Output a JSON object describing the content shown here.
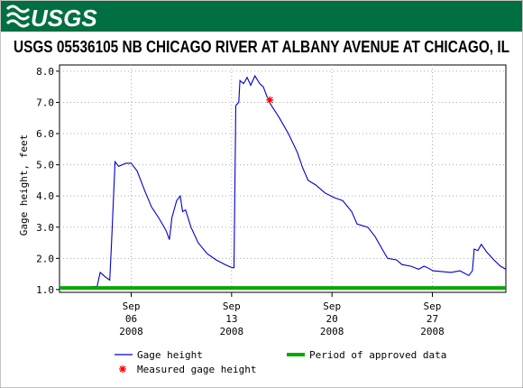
{
  "logo": "USGS",
  "chart_data": {
    "type": "line",
    "title": "USGS 05536105 NB CHICAGO RIVER AT ALBANY AVENUE AT CHICAGO, IL",
    "y_label": "Gage height, feet",
    "xlim": [
      "2008-09-01T00:00",
      "2008-10-02T03:00"
    ],
    "ylim": [
      0.91,
      8.2
    ],
    "grid": true,
    "yticks": [
      {
        "value": 1,
        "label": "1.0"
      },
      {
        "value": 2,
        "label": "2.0"
      },
      {
        "value": 3,
        "label": "3.0"
      },
      {
        "value": 4,
        "label": "4.0"
      },
      {
        "value": 5,
        "label": "5.0"
      },
      {
        "value": 6,
        "label": "6.0"
      },
      {
        "value": 7,
        "label": "7.0"
      },
      {
        "value": 8,
        "label": "8.0"
      }
    ],
    "xticks": [
      {
        "value": "2008-09-06T00:00",
        "label": [
          "Sep",
          "06",
          "2008"
        ]
      },
      {
        "value": "2008-09-13T00:00",
        "label": [
          "Sep",
          "13",
          "2008"
        ]
      },
      {
        "value": "2008-09-20T00:00",
        "label": [
          "Sep",
          "20",
          "2008"
        ]
      },
      {
        "value": "2008-09-27T00:00",
        "label": [
          "Sep",
          "27",
          "2008"
        ]
      }
    ],
    "series": [
      {
        "name": "Gage height",
        "color": "#0000cc",
        "style": "line",
        "x": [
          "2008-09-01T00:00",
          "2008-09-03T03:00",
          "2008-09-03T15:00",
          "2008-09-03T20:00",
          "2008-09-04T05:00",
          "2008-09-04T12:00",
          "2008-09-04T15:00",
          "2008-09-04T21:00",
          "2008-09-05T03:00",
          "2008-09-05T15:00",
          "2008-09-06T00:00",
          "2008-09-06T10:00",
          "2008-09-06T22:00",
          "2008-09-07T10:00",
          "2008-09-07T22:00",
          "2008-09-08T10:00",
          "2008-09-08T16:00",
          "2008-09-08T20:00",
          "2008-09-09T04:00",
          "2008-09-09T10:00",
          "2008-09-09T14:00",
          "2008-09-09T19:00",
          "2008-09-10T04:00",
          "2008-09-10T16:00",
          "2008-09-11T07:00",
          "2008-09-11T22:00",
          "2008-09-12T13:00",
          "2008-09-13T01:00",
          "2008-09-13T04:00",
          "2008-09-13T07:00",
          "2008-09-13T12:00",
          "2008-09-13T14:00",
          "2008-09-13T20:00",
          "2008-09-14T02:00",
          "2008-09-14T08:00",
          "2008-09-14T15:00",
          "2008-09-14T23:00",
          "2008-09-15T05:00",
          "2008-09-15T11:00",
          "2008-09-15T17:00",
          "2008-09-16T08:00",
          "2008-09-16T23:00",
          "2008-09-17T14:00",
          "2008-09-17T23:00",
          "2008-09-18T08:00",
          "2008-09-18T21:00",
          "2008-09-19T12:00",
          "2008-09-20T03:00",
          "2008-09-20T18:00",
          "2008-09-21T09:00",
          "2008-09-21T18:00",
          "2008-09-22T12:00",
          "2008-09-23T00:00",
          "2008-09-23T12:00",
          "2008-09-23T21:00",
          "2008-09-24T12:00",
          "2008-09-24T21:00",
          "2008-09-25T12:00",
          "2008-09-26T01:00",
          "2008-09-26T10:00",
          "2008-09-26T16:00",
          "2008-09-27T01:00",
          "2008-09-28T07:00",
          "2008-09-28T22:00",
          "2008-09-29T13:00",
          "2008-09-29T19:00",
          "2008-09-29T22:00",
          "2008-09-30T04:00",
          "2008-09-30T10:00",
          "2008-09-30T19:00",
          "2008-10-01T07:00",
          "2008-10-01T18:00",
          "2008-10-02T03:00"
        ],
        "values": [
          1.08,
          1.08,
          1.1,
          1.55,
          1.4,
          1.3,
          2.5,
          5.1,
          4.95,
          5.05,
          5.05,
          4.8,
          4.2,
          3.65,
          3.3,
          2.9,
          2.6,
          3.3,
          3.85,
          4.0,
          3.5,
          3.55,
          3.0,
          2.5,
          2.15,
          1.95,
          1.8,
          1.7,
          1.7,
          6.9,
          7.0,
          7.7,
          7.6,
          7.8,
          7.55,
          7.85,
          7.6,
          7.5,
          7.2,
          6.95,
          6.5,
          6.0,
          5.4,
          4.9,
          4.5,
          4.35,
          4.1,
          3.95,
          3.85,
          3.5,
          3.1,
          3.0,
          2.7,
          2.3,
          2.0,
          1.95,
          1.8,
          1.75,
          1.65,
          1.75,
          1.7,
          1.6,
          1.55,
          1.6,
          1.45,
          1.6,
          2.3,
          2.25,
          2.45,
          2.2,
          1.95,
          1.75,
          1.65
        ]
      },
      {
        "name": "Measured gage height",
        "color": "#ff0000",
        "style": "star",
        "x": [
          "2008-09-15T16:00"
        ],
        "values": [
          7.08
        ]
      },
      {
        "name": "Period of approved data",
        "color": "#00aa00",
        "style": "band",
        "x": [
          "2008-09-01T00:00",
          "2008-10-02T03:00"
        ],
        "values": [
          1.05,
          1.05
        ]
      }
    ]
  }
}
